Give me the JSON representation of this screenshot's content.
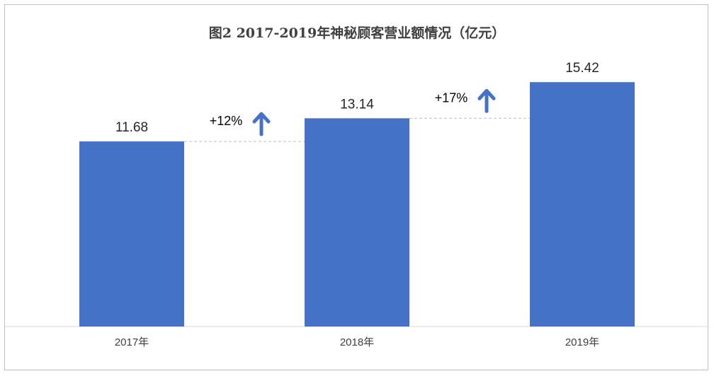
{
  "chart_data": {
    "type": "bar",
    "title": "图2 2017-2019年神秘顾客营业额情况（亿元）",
    "categories": [
      "2017年",
      "2018年",
      "2019年"
    ],
    "values": [
      11.68,
      13.14,
      15.42
    ],
    "value_labels": [
      "11.68",
      "13.14",
      "15.42"
    ],
    "ylim": [
      0,
      16.5
    ],
    "grid": false,
    "legend": "none",
    "bar_color": "#4472C4",
    "growth_annotations": [
      {
        "from": "2017年",
        "to": "2018年",
        "label": "+12%",
        "icon": "arrow-up-icon"
      },
      {
        "from": "2018年",
        "to": "2019年",
        "label": "+17%",
        "icon": "arrow-up-icon"
      }
    ],
    "arrow_color": "#4472C4",
    "connector_color": "#bfbfbf"
  }
}
